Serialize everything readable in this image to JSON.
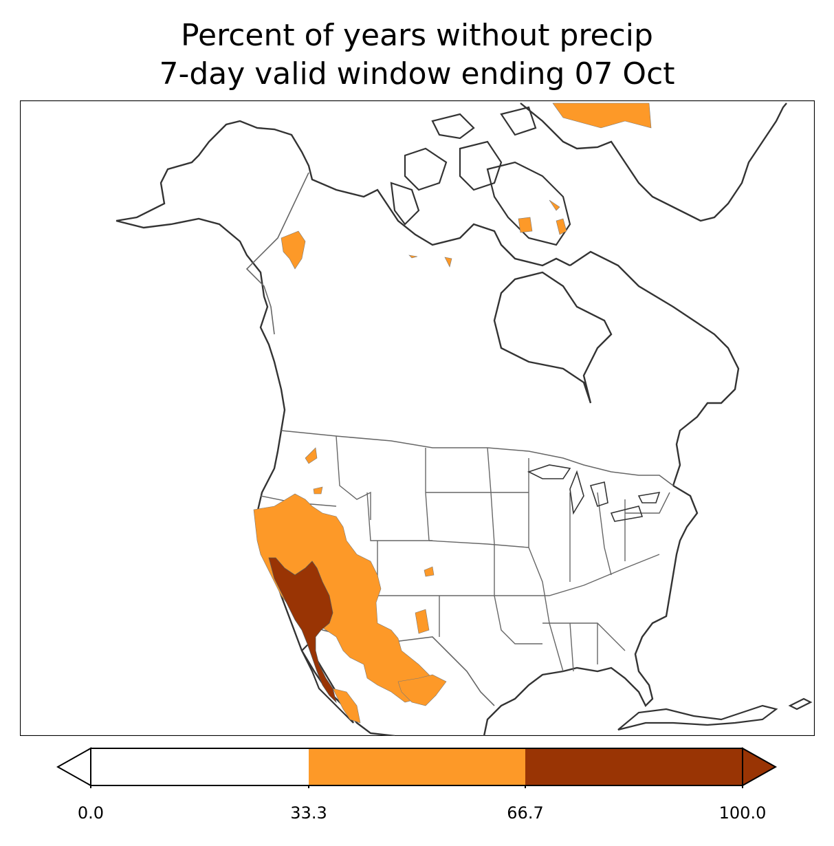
{
  "title": {
    "line1": "Percent of years without precip",
    "line2": "7-day valid window ending 07 Oct"
  },
  "colorbar": {
    "ticks": [
      "0.0",
      "33.3",
      "66.7",
      "100.0"
    ],
    "bins": [
      {
        "range": [
          0.0,
          33.3
        ],
        "color": "#ffffff"
      },
      {
        "range": [
          33.3,
          66.7
        ],
        "color": "#fd9928"
      },
      {
        "range": [
          66.7,
          100.0
        ],
        "color": "#993404"
      }
    ],
    "extend": "both"
  },
  "map": {
    "region": "North America",
    "fill_colors": {
      "mid": "#fd9928",
      "high": "#993404"
    },
    "coast_color": "#333333",
    "border_color": "#666666"
  }
}
